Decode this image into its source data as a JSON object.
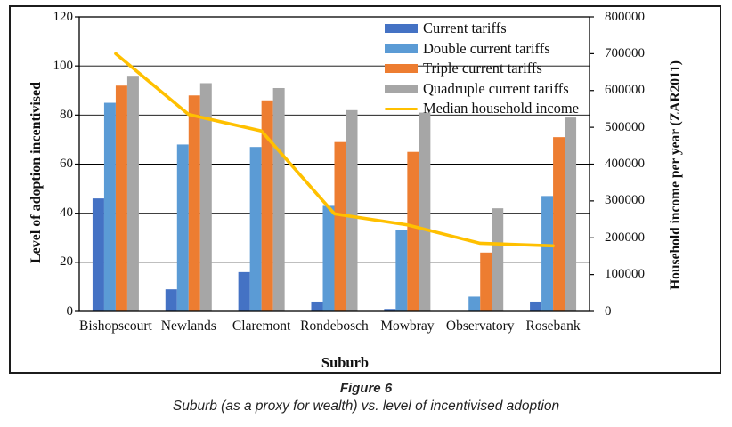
{
  "figure": {
    "caption_title": "Figure 6",
    "caption_subtitle": "Suburb (as a proxy for wealth) vs. level of incentivised adoption"
  },
  "colors": {
    "current": "#4472C4",
    "double": "#5B9BD5",
    "triple": "#ED7D31",
    "quadruple": "#A6A6A6",
    "income_line": "#FFC000",
    "axis": "#000000"
  },
  "chart_data": {
    "type": "bar",
    "subtype": "grouped-bar-with-line-overlay",
    "categories": [
      "Bishopscourt",
      "Newlands",
      "Claremont",
      "Rondebosch",
      "Mowbray",
      "Observatory",
      "Rosebank"
    ],
    "series": [
      {
        "name": "Current tariffs",
        "type": "bar",
        "axis": "left",
        "color": "#4472C4",
        "values": [
          46,
          9,
          16,
          4,
          1,
          0,
          4
        ]
      },
      {
        "name": "Double current tariffs",
        "type": "bar",
        "axis": "left",
        "color": "#5B9BD5",
        "values": [
          85,
          68,
          67,
          43,
          33,
          6,
          47
        ]
      },
      {
        "name": "Triple current tariffs",
        "type": "bar",
        "axis": "left",
        "color": "#ED7D31",
        "values": [
          92,
          88,
          86,
          69,
          65,
          24,
          71
        ]
      },
      {
        "name": "Quadruple current tariffs",
        "type": "bar",
        "axis": "left",
        "color": "#A6A6A6",
        "values": [
          96,
          93,
          91,
          82,
          81,
          42,
          79
        ]
      },
      {
        "name": "Median household income",
        "type": "line",
        "axis": "right",
        "color": "#FFC000",
        "values": [
          700000,
          535000,
          490000,
          265000,
          235000,
          185000,
          178000
        ]
      }
    ],
    "left_axis": {
      "label": "Level of adoption incentivised",
      "min": 0,
      "max": 120,
      "step": 20,
      "tick_labels": [
        "0",
        "20",
        "40",
        "60",
        "80",
        "100",
        "120"
      ]
    },
    "right_axis": {
      "label": "Household income per year (ZAR2011)",
      "min": 0,
      "max": 800000,
      "step": 100000,
      "tick_labels": [
        "0",
        "100000",
        "200000",
        "300000",
        "400000",
        "500000",
        "600000",
        "700000",
        "800000"
      ]
    },
    "x_axis": {
      "label": "Suburb"
    },
    "grid": true,
    "legend_position": "top-right-inside"
  }
}
